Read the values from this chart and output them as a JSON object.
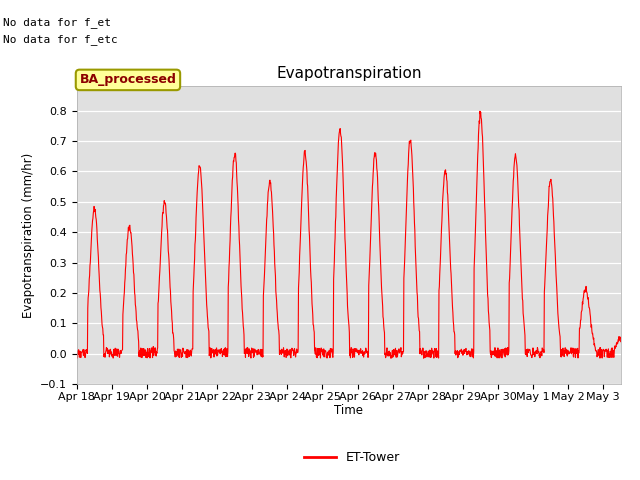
{
  "title": "Evapotranspiration",
  "ylabel": "Evapotranspiration (mm/hr)",
  "xlabel": "Time",
  "ylim": [
    -0.1,
    0.88
  ],
  "yticks": [
    -0.1,
    0.0,
    0.1,
    0.2,
    0.3,
    0.4,
    0.5,
    0.6,
    0.7,
    0.8
  ],
  "line_color": "red",
  "line_label": "ET-Tower",
  "bg_color": "#e0e0e0",
  "no_data_text1": "No data for f_et",
  "no_data_text2": "No data for f_etc",
  "ba_label": "BA_processed",
  "x_tick_labels": [
    "Apr 18",
    "Apr 19",
    "Apr 20",
    "Apr 21",
    "Apr 22",
    "Apr 23",
    "Apr 24",
    "Apr 25",
    "Apr 26",
    "Apr 27",
    "Apr 28",
    "Apr 29",
    "Apr 30",
    "May 1",
    "May 2",
    "May 3"
  ],
  "daily_peaks": [
    0.48,
    0.42,
    0.5,
    0.62,
    0.66,
    0.57,
    0.66,
    0.74,
    0.66,
    0.7,
    0.6,
    0.79,
    0.65,
    0.57,
    0.21,
    0.05
  ],
  "n_days": 15.5,
  "points_per_day": 96,
  "figsize": [
    6.4,
    4.8
  ],
  "dpi": 100
}
